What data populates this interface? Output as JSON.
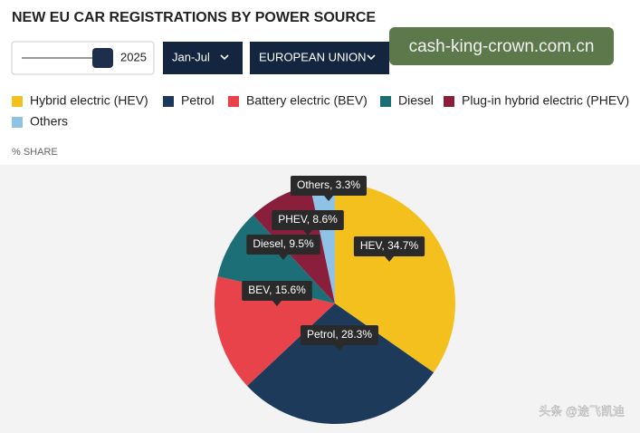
{
  "header": {
    "title": "NEW EU CAR REGISTRATIONS BY POWER SOURCE",
    "year": "2025",
    "period": "Jan-Jul",
    "region": "EUROPEAN UNION",
    "watermark": "cash-king-crown.com.cn"
  },
  "chart_data": {
    "type": "pie",
    "subtitle": "% SHARE",
    "categories": [
      "Hybrid electric (HEV)",
      "Petrol",
      "Battery electric (BEV)",
      "Diesel",
      "Plug-in hybrid electric (PHEV)",
      "Others"
    ],
    "values": [
      34.7,
      28.3,
      15.6,
      9.5,
      8.6,
      3.3
    ],
    "value_labels": [
      "HEV, 34.7%",
      "Petrol, 28.3%",
      "BEV, 15.6%",
      "Diesel, 9.5%",
      "PHEV, 8.6%",
      "Others, 3.3%"
    ],
    "colors": [
      "#f4c01e",
      "#1d3a5a",
      "#e8434b",
      "#1c6f76",
      "#8a1f3d",
      "#8fc3e6"
    ]
  },
  "footer": {
    "credit": "头条 @途飞凯迪"
  }
}
